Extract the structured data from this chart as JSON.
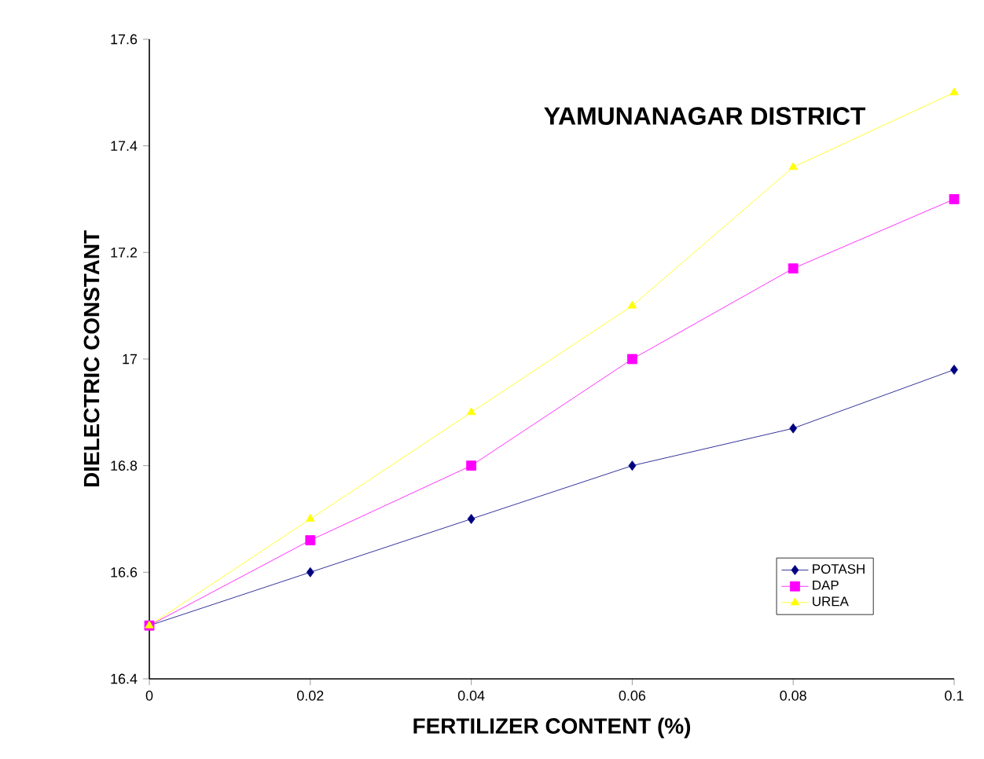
{
  "chart_data": {
    "type": "line",
    "title": "YAMUNANAGAR DISTRICT",
    "xlabel": "FERTILIZER CONTENT (%)",
    "ylabel": "DIELECTRIC CONSTANT",
    "x": [
      0,
      0.02,
      0.04,
      0.06,
      0.08,
      0.1
    ],
    "series": [
      {
        "name": "POTASH",
        "color": "#000080",
        "marker": "diamond",
        "values": [
          16.5,
          16.6,
          16.7,
          16.8,
          16.87,
          16.98
        ]
      },
      {
        "name": "DAP",
        "color": "#ff00ff",
        "marker": "square",
        "values": [
          16.5,
          16.66,
          16.8,
          17.0,
          17.17,
          17.3
        ]
      },
      {
        "name": "UREA",
        "color": "#ffff00",
        "marker": "triangle",
        "values": [
          16.5,
          16.7,
          16.9,
          17.1,
          17.36,
          17.5
        ]
      }
    ],
    "xlim": [
      0,
      0.1
    ],
    "xticks": [
      0,
      0.02,
      0.04,
      0.06,
      0.08,
      0.1
    ],
    "ylim": [
      16.4,
      17.6
    ],
    "yticks": [
      16.4,
      16.6,
      16.8,
      17,
      17.2,
      17.4,
      17.6
    ],
    "legend": "bottom right",
    "grid": false,
    "line_style": "solid"
  }
}
